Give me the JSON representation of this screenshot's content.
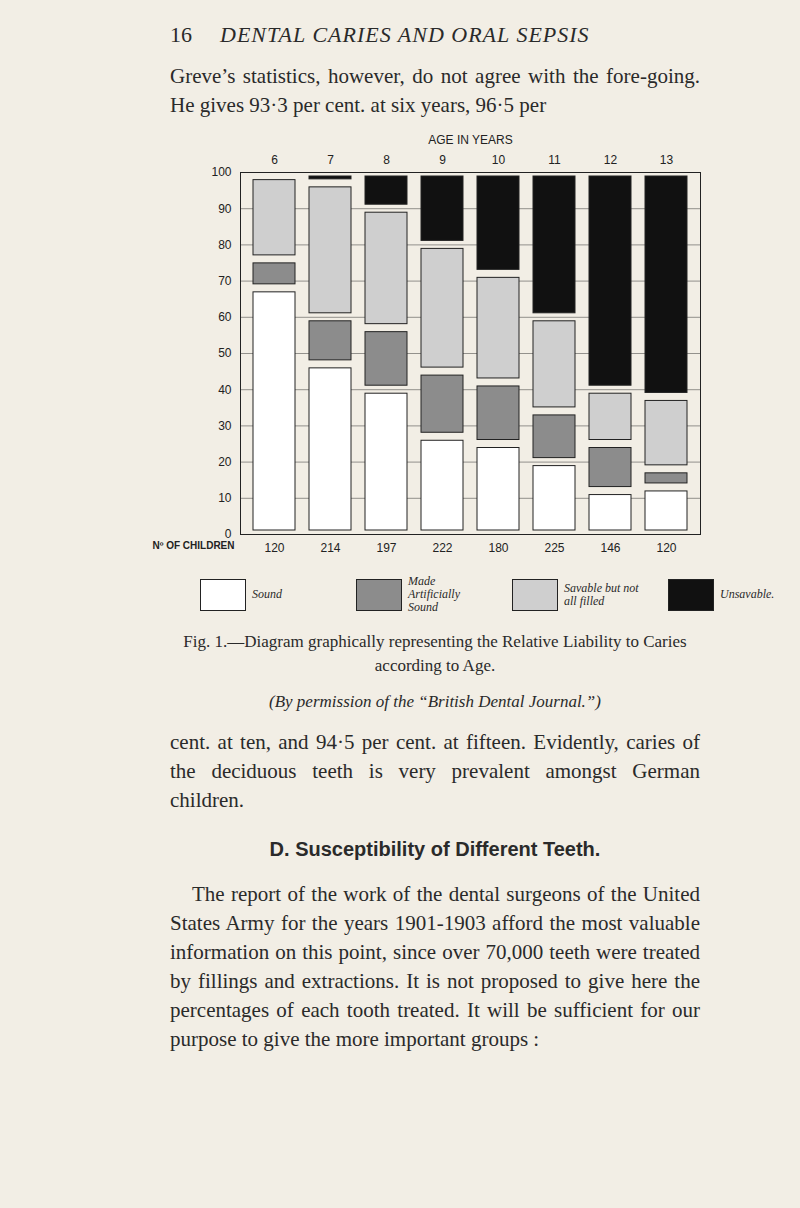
{
  "header": {
    "page_number": "16",
    "running_title": "DENTAL CARIES AND ORAL SEPSIS"
  },
  "paragraph_1": "Greve’s statistics, however, do not agree with the fore-going. He gives 93·3 per cent. at six years, 96·5 per",
  "chart_data": {
    "type": "bar",
    "stacked": true,
    "xlabel": "AGE IN YEARS",
    "categories": [
      6,
      7,
      8,
      9,
      10,
      11,
      12,
      13
    ],
    "series": [
      {
        "name": "Sound",
        "color": "#ffffff",
        "values": [
          68,
          47,
          40,
          27,
          25,
          20,
          12,
          13
        ]
      },
      {
        "name": "Made Artificially Sound",
        "color": "#8c8c8c",
        "values": [
          8,
          13,
          17,
          18,
          17,
          14,
          13,
          5
        ]
      },
      {
        "name": "Savable but not all filled",
        "color": "#cfcfcf",
        "values": [
          23,
          37,
          33,
          35,
          30,
          26,
          15,
          20
        ]
      },
      {
        "name": "Unsavable.",
        "color": "#111111",
        "values": [
          1,
          3,
          10,
          20,
          28,
          40,
          60,
          62
        ]
      }
    ],
    "children": {
      "label": "Nº OF CHILDREN",
      "values": [
        120,
        214,
        197,
        222,
        180,
        225,
        146,
        120
      ]
    },
    "ylim": [
      0,
      100
    ],
    "yticks": [
      0,
      10,
      20,
      30,
      40,
      50,
      60,
      70,
      80,
      90,
      100
    ],
    "grid": true,
    "legend": "bottom"
  },
  "caption": "Fig. 1.—Diagram graphically representing the Relative Liability to Caries according to Age.",
  "caption_note": "(By permission of the “British Dental Journal.”)",
  "paragraph_2": "cent. at ten, and 94·5 per cent. at fifteen. Evidently, caries of the deciduous teeth is very prevalent amongst German children.",
  "section_heading": "D. Susceptibility of Different Teeth.",
  "paragraph_3": "The report of the work of the dental surgeons of the United States Army for the years 1901-1903 afford the most valuable information on this point, since over 70,000 teeth were treated by fillings and extractions. It is not proposed to give here the percentages of each tooth treated. It will be sufficient for our purpose to give the more important groups :"
}
